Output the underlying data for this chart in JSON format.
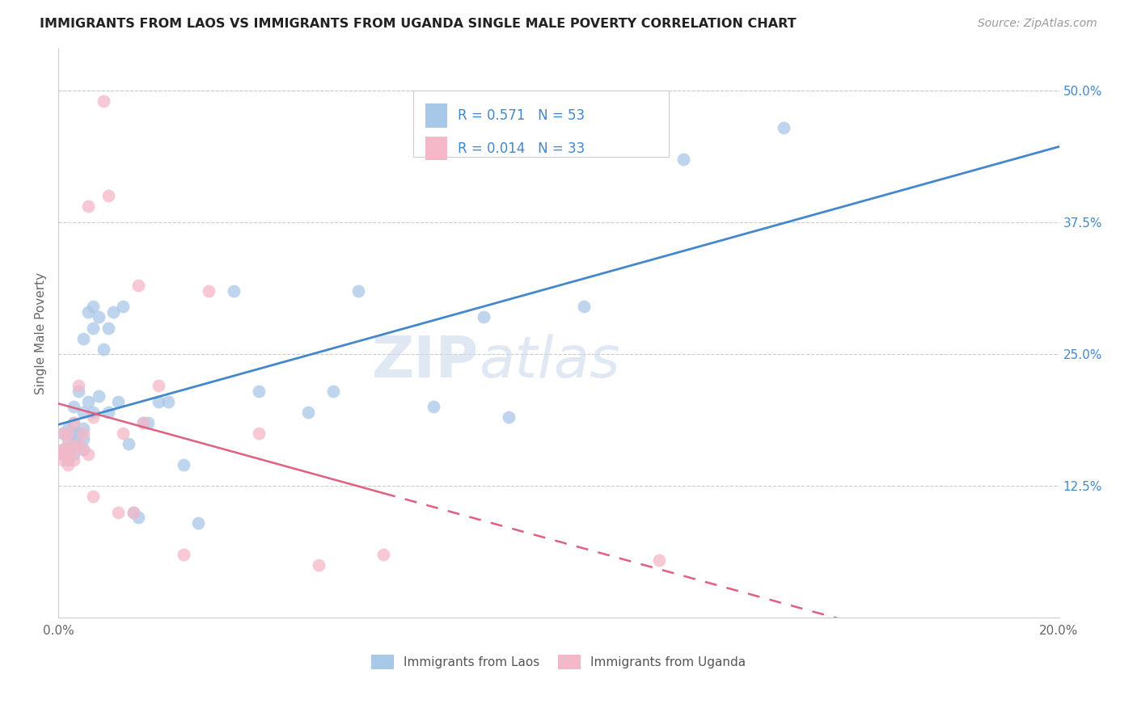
{
  "title": "IMMIGRANTS FROM LAOS VS IMMIGRANTS FROM UGANDA SINGLE MALE POVERTY CORRELATION CHART",
  "source": "Source: ZipAtlas.com",
  "ylabel": "Single Male Poverty",
  "legend_label1": "Immigrants from Laos",
  "legend_label2": "Immigrants from Uganda",
  "r1": 0.571,
  "n1": 53,
  "r2": 0.014,
  "n2": 33,
  "xlim": [
    0.0,
    0.2
  ],
  "ylim": [
    0.0,
    0.54
  ],
  "xticks": [
    0.0,
    0.04,
    0.08,
    0.12,
    0.16,
    0.2
  ],
  "xticklabels": [
    "0.0%",
    "",
    "",
    "",
    "",
    "20.0%"
  ],
  "yticks_right": [
    0.0,
    0.125,
    0.25,
    0.375,
    0.5
  ],
  "yticklabels_right": [
    "",
    "12.5%",
    "25.0%",
    "37.5%",
    "50.0%"
  ],
  "color_blue": "#a8c8e8",
  "color_pink": "#f4b8c8",
  "line_blue": "#4488cc",
  "line_pink": "#e06080",
  "background_color": "#ffffff",
  "watermark_zip": "ZIP",
  "watermark_atlas": "atlas",
  "blue_x": [
    0.001,
    0.001,
    0.001,
    0.002,
    0.002,
    0.002,
    0.002,
    0.003,
    0.003,
    0.003,
    0.003,
    0.003,
    0.004,
    0.004,
    0.004,
    0.005,
    0.005,
    0.005,
    0.005,
    0.005,
    0.006,
    0.006,
    0.007,
    0.007,
    0.007,
    0.008,
    0.008,
    0.009,
    0.01,
    0.01,
    0.011,
    0.012,
    0.013,
    0.014,
    0.015,
    0.016,
    0.017,
    0.018,
    0.02,
    0.022,
    0.025,
    0.028,
    0.035,
    0.04,
    0.05,
    0.055,
    0.06,
    0.075,
    0.085,
    0.09,
    0.105,
    0.125,
    0.145
  ],
  "blue_y": [
    0.155,
    0.16,
    0.175,
    0.15,
    0.16,
    0.17,
    0.18,
    0.155,
    0.165,
    0.175,
    0.185,
    0.2,
    0.165,
    0.175,
    0.215,
    0.16,
    0.17,
    0.18,
    0.195,
    0.265,
    0.205,
    0.29,
    0.195,
    0.275,
    0.295,
    0.21,
    0.285,
    0.255,
    0.195,
    0.275,
    0.29,
    0.205,
    0.295,
    0.165,
    0.1,
    0.095,
    0.185,
    0.185,
    0.205,
    0.205,
    0.145,
    0.09,
    0.31,
    0.215,
    0.195,
    0.215,
    0.31,
    0.2,
    0.285,
    0.19,
    0.295,
    0.435,
    0.465
  ],
  "pink_x": [
    0.001,
    0.001,
    0.001,
    0.001,
    0.002,
    0.002,
    0.002,
    0.002,
    0.003,
    0.003,
    0.003,
    0.004,
    0.004,
    0.005,
    0.005,
    0.006,
    0.006,
    0.007,
    0.007,
    0.009,
    0.01,
    0.012,
    0.013,
    0.015,
    0.016,
    0.017,
    0.02,
    0.025,
    0.03,
    0.04,
    0.052,
    0.065,
    0.12
  ],
  "pink_y": [
    0.15,
    0.155,
    0.16,
    0.175,
    0.145,
    0.155,
    0.165,
    0.175,
    0.15,
    0.16,
    0.185,
    0.165,
    0.22,
    0.16,
    0.175,
    0.155,
    0.39,
    0.115,
    0.19,
    0.49,
    0.4,
    0.1,
    0.175,
    0.1,
    0.315,
    0.185,
    0.22,
    0.06,
    0.31,
    0.175,
    0.05,
    0.06,
    0.055
  ]
}
